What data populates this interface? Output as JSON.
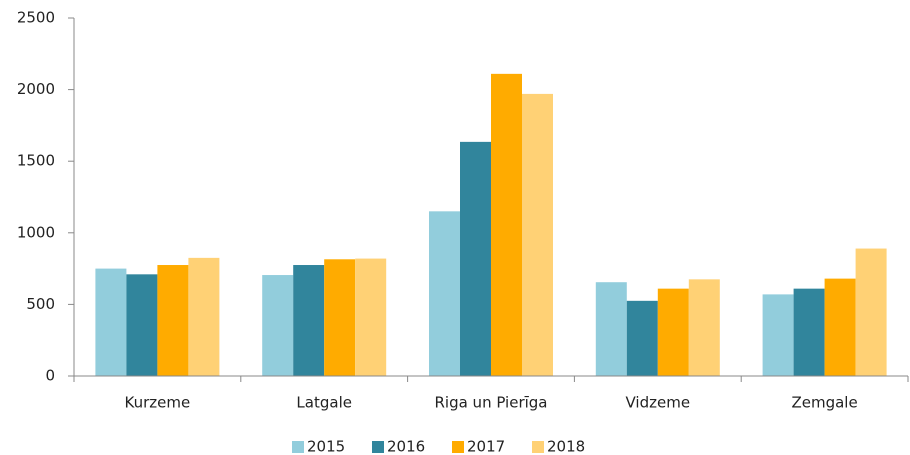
{
  "chart_data": {
    "type": "bar",
    "categories": [
      "Kurzeme",
      "Latgale",
      "Riga un Pierīga",
      "Vidzeme",
      "Zemgale"
    ],
    "series": [
      {
        "name": "2015",
        "color": "#92cddc",
        "values": [
          750,
          705,
          1150,
          655,
          570
        ]
      },
      {
        "name": "2016",
        "color": "#31859c",
        "values": [
          710,
          775,
          1635,
          525,
          610
        ]
      },
      {
        "name": "2017",
        "color": "#ffab00",
        "values": [
          775,
          815,
          2110,
          610,
          680
        ]
      },
      {
        "name": "2018",
        "color": "#ffd175",
        "values": [
          825,
          820,
          1970,
          675,
          890
        ]
      }
    ],
    "ylim": [
      0,
      2500
    ],
    "yticks": [
      0,
      500,
      1000,
      1500,
      2000,
      2500
    ],
    "grid": false,
    "legend": "bottom"
  }
}
